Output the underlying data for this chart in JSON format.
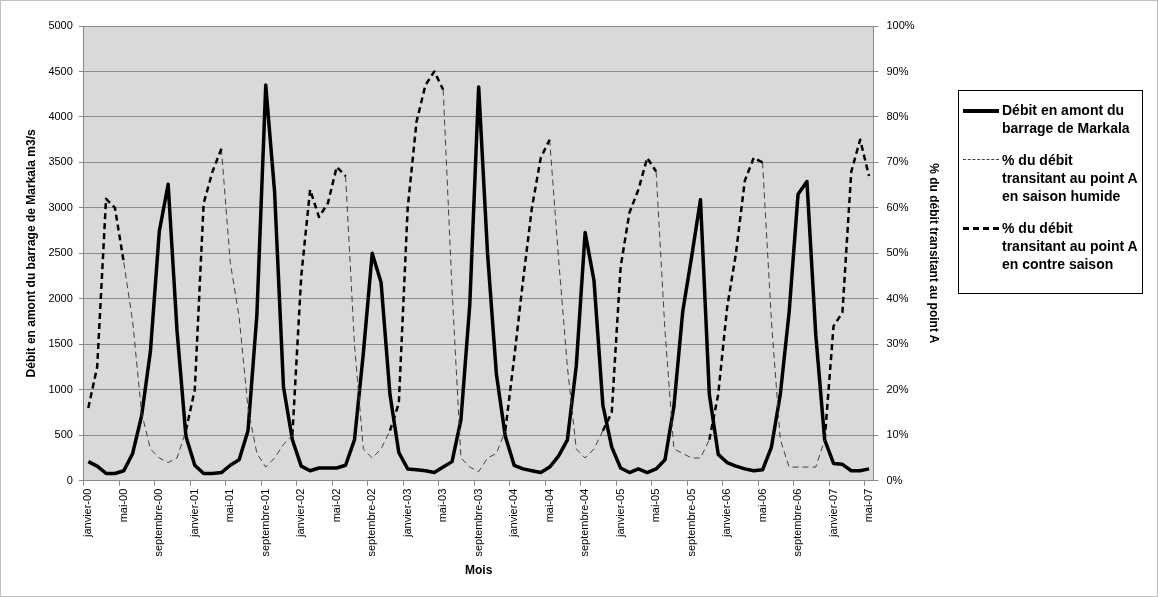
{
  "chart_data": {
    "type": "line",
    "xlabel": "Mois",
    "ylabel": "Débit en amont du barrage de Markala m3/s",
    "y2label": "% du débit transitant au point A",
    "categories": [
      "janvier-00",
      null,
      null,
      null,
      "mai-00",
      null,
      null,
      null,
      "septembre-00",
      null,
      null,
      null,
      "janvier-01",
      null,
      null,
      null,
      "mai-01",
      null,
      null,
      null,
      "septembre-01",
      null,
      null,
      null,
      "janvier-02",
      null,
      null,
      null,
      "mai-02",
      null,
      null,
      null,
      "septembre-02",
      null,
      null,
      null,
      "janvier-03",
      null,
      null,
      null,
      "mai-03",
      null,
      null,
      null,
      "septembre-03",
      null,
      null,
      null,
      "janvier-04",
      null,
      null,
      null,
      "mai-04",
      null,
      null,
      null,
      "septembre-04",
      null,
      null,
      null,
      "janvier-05",
      null,
      null,
      null,
      "mai-05",
      null,
      null,
      null,
      "septembre-05",
      null,
      null,
      null,
      "janvier-06",
      null,
      null,
      null,
      "mai-06",
      null,
      null,
      null,
      "septembre-06",
      null,
      null,
      null,
      "janvier-07",
      null,
      null,
      null,
      "mai-07"
    ],
    "series": [
      {
        "name": "Débit en amont du barrage de Markala",
        "color": "#000000",
        "line_style": "solid",
        "values": [
          210,
          160,
          80,
          80,
          110,
          300,
          710,
          1420,
          2740,
          3260,
          1650,
          490,
          170,
          80,
          80,
          90,
          170,
          230,
          550,
          1820,
          4350,
          3170,
          1030,
          450,
          160,
          110,
          140,
          140,
          140,
          170,
          450,
          1400,
          2500,
          2180,
          950,
          310,
          130,
          120,
          110,
          90,
          150,
          210,
          670,
          1940,
          4330,
          2500,
          1170,
          490,
          170,
          130,
          110,
          90,
          150,
          270,
          450,
          1260,
          2730,
          2200,
          830,
          370,
          140,
          90,
          130,
          90,
          130,
          230,
          810,
          1860,
          2460,
          3090,
          950,
          290,
          200,
          160,
          130,
          110,
          120,
          370,
          950,
          1860,
          3150,
          3290,
          1600,
          450,
          190,
          180,
          110,
          110,
          130
        ]
      },
      {
        "name": "% du débit transitant au point A en saison humide",
        "color": "#404040",
        "line_style": "dashed",
        "axis": "y2",
        "values": [
          null,
          null,
          null,
          null,
          48,
          35,
          15,
          7,
          5,
          4,
          5,
          11,
          null,
          null,
          null,
          73,
          48,
          36,
          16,
          6,
          3,
          5,
          8,
          10,
          null,
          null,
          null,
          null,
          null,
          67,
          30,
          7,
          5,
          7,
          11,
          null,
          null,
          null,
          null,
          null,
          86,
          42,
          5,
          3,
          2,
          5,
          6,
          11,
          null,
          null,
          null,
          null,
          75,
          49,
          25,
          7,
          5,
          7,
          11,
          null,
          null,
          null,
          null,
          null,
          68,
          33,
          7,
          6,
          5,
          5,
          9,
          null,
          null,
          null,
          null,
          null,
          70,
          35,
          9,
          3,
          3,
          3,
          3,
          9,
          null,
          null,
          null,
          null,
          null
        ]
      },
      {
        "name": "% du débit transitant au point A en contre saison",
        "color": "#000000",
        "line_style": "dashed",
        "axis": "y2",
        "values": [
          16,
          25,
          62,
          60,
          48,
          null,
          null,
          null,
          null,
          null,
          null,
          11,
          20,
          61,
          68,
          73,
          null,
          null,
          null,
          null,
          null,
          null,
          null,
          10,
          45,
          64,
          58,
          61,
          69,
          67,
          null,
          null,
          null,
          null,
          11,
          17,
          60,
          79,
          87,
          90,
          86,
          null,
          null,
          null,
          null,
          null,
          null,
          11,
          27,
          44,
          60,
          71,
          75,
          null,
          null,
          null,
          null,
          null,
          11,
          15,
          47,
          59,
          64,
          71,
          68,
          null,
          null,
          null,
          null,
          null,
          9,
          19,
          38,
          50,
          66,
          71,
          70,
          null,
          null,
          null,
          null,
          null,
          null,
          9,
          34,
          37,
          68,
          75,
          67
        ]
      }
    ],
    "ylim": [
      0,
      5000
    ],
    "yticks": [
      0,
      500,
      1000,
      1500,
      2000,
      2500,
      3000,
      3500,
      4000,
      4500,
      5000
    ],
    "y2lim": [
      0,
      100
    ],
    "y2ticks": [
      {
        "value": 0,
        "label": "0%"
      },
      {
        "value": 10,
        "label": "10%"
      },
      {
        "value": 20,
        "label": "20%"
      },
      {
        "value": 30,
        "label": "30%"
      },
      {
        "value": 40,
        "label": "40%"
      },
      {
        "value": 50,
        "label": "50%"
      },
      {
        "value": 60,
        "label": "60%"
      },
      {
        "value": 70,
        "label": "70%"
      },
      {
        "value": 80,
        "label": "80%"
      },
      {
        "value": 90,
        "label": "90%"
      },
      {
        "value": 100,
        "label": "100%"
      }
    ],
    "grid": "y",
    "legend": "right",
    "marker": "none"
  }
}
